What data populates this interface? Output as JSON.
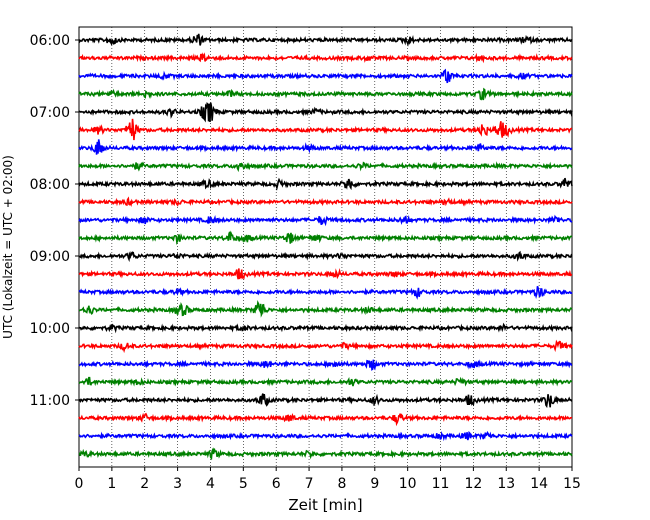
{
  "chart_data": {
    "type": "line",
    "title": "",
    "xlabel": "Zeit  [min]",
    "ylabel": "UTC (Lokalzeit = UTC + 02:00)",
    "xlim": [
      0,
      15
    ],
    "x_ticks": [
      "0",
      "1",
      "2",
      "3",
      "4",
      "5",
      "6",
      "7",
      "8",
      "9",
      "10",
      "11",
      "12",
      "13",
      "14",
      "15"
    ],
    "y_ticks": [
      "06:00",
      "07:00",
      "08:00",
      "09:00",
      "10:00",
      "11:00"
    ],
    "trace_interval_min": 15,
    "grid": "vertical-dotted",
    "colors": [
      "#000000",
      "#ff0000",
      "#0000ff",
      "#008000"
    ],
    "traces": [
      {
        "start": "06:00",
        "events": [
          [
            1.0,
            5
          ],
          [
            3.6,
            6
          ],
          [
            10.0,
            3
          ],
          [
            13.6,
            3
          ]
        ]
      },
      {
        "start": "06:15",
        "events": [
          [
            3.8,
            3
          ],
          [
            8.8,
            2
          ],
          [
            12.2,
            2
          ]
        ]
      },
      {
        "start": "06:30",
        "events": [
          [
            2.6,
            2
          ],
          [
            11.2,
            7
          ],
          [
            13.5,
            2
          ]
        ]
      },
      {
        "start": "06:45",
        "events": [
          [
            1.0,
            2
          ],
          [
            2.0,
            3
          ],
          [
            4.6,
            2
          ],
          [
            12.3,
            5
          ]
        ]
      },
      {
        "start": "07:00",
        "events": [
          [
            2.8,
            3
          ],
          [
            3.8,
            5
          ],
          [
            4.0,
            9
          ],
          [
            7.2,
            2
          ]
        ]
      },
      {
        "start": "07:15",
        "events": [
          [
            0.6,
            3
          ],
          [
            1.6,
            12
          ],
          [
            12.3,
            6
          ],
          [
            12.8,
            7
          ],
          [
            13.0,
            4
          ]
        ]
      },
      {
        "start": "07:30",
        "events": [
          [
            0.6,
            8
          ],
          [
            7.0,
            2
          ],
          [
            12.2,
            3
          ]
        ]
      },
      {
        "start": "07:45",
        "events": [
          [
            1.8,
            3
          ],
          [
            4.9,
            4
          ],
          [
            8.6,
            2
          ]
        ]
      },
      {
        "start": "08:00",
        "events": [
          [
            3.9,
            3
          ],
          [
            6.1,
            3
          ],
          [
            8.2,
            6
          ],
          [
            14.8,
            5
          ]
        ]
      },
      {
        "start": "08:15",
        "events": [
          [
            1.5,
            2
          ],
          [
            3.0,
            2
          ],
          [
            11.2,
            2
          ]
        ]
      },
      {
        "start": "08:30",
        "events": [
          [
            2.0,
            3
          ],
          [
            4.0,
            3
          ],
          [
            7.4,
            4
          ],
          [
            9.9,
            3
          ],
          [
            14.5,
            3
          ]
        ]
      },
      {
        "start": "08:45",
        "events": [
          [
            3.0,
            3
          ],
          [
            4.6,
            5
          ],
          [
            5.1,
            3
          ],
          [
            6.4,
            5
          ],
          [
            7.2,
            3
          ]
        ]
      },
      {
        "start": "09:00",
        "events": [
          [
            1.6,
            3
          ],
          [
            3.0,
            2
          ],
          [
            8.0,
            2
          ],
          [
            13.4,
            3
          ]
        ]
      },
      {
        "start": "09:15",
        "events": [
          [
            4.9,
            5
          ],
          [
            7.8,
            3
          ],
          [
            9.6,
            2
          ]
        ]
      },
      {
        "start": "09:30",
        "events": [
          [
            3.0,
            2
          ],
          [
            10.3,
            4
          ],
          [
            14.0,
            5
          ]
        ]
      },
      {
        "start": "09:45",
        "events": [
          [
            0.3,
            4
          ],
          [
            3.0,
            3
          ],
          [
            3.2,
            4
          ],
          [
            5.5,
            10
          ],
          [
            8.8,
            2
          ]
        ]
      },
      {
        "start": "10:00",
        "events": [
          [
            1.0,
            2
          ],
          [
            5.0,
            2
          ],
          [
            12.9,
            2
          ]
        ]
      },
      {
        "start": "10:15",
        "events": [
          [
            1.4,
            3
          ],
          [
            8.1,
            2
          ],
          [
            14.6,
            4
          ]
        ]
      },
      {
        "start": "10:30",
        "events": [
          [
            5.7,
            3
          ],
          [
            7.8,
            3
          ],
          [
            8.9,
            5
          ],
          [
            12.0,
            3
          ]
        ]
      },
      {
        "start": "10:45",
        "events": [
          [
            0.3,
            3
          ],
          [
            1.8,
            2
          ],
          [
            8.3,
            3
          ],
          [
            11.6,
            3
          ]
        ]
      },
      {
        "start": "11:00",
        "events": [
          [
            5.6,
            6
          ],
          [
            9.0,
            3
          ],
          [
            11.9,
            5
          ],
          [
            14.3,
            7
          ]
        ]
      },
      {
        "start": "11:15",
        "events": [
          [
            2.0,
            3
          ],
          [
            6.4,
            3
          ],
          [
            9.7,
            5
          ]
        ]
      },
      {
        "start": "11:30",
        "events": [
          [
            11.0,
            2
          ],
          [
            11.8,
            3
          ],
          [
            12.4,
            3
          ]
        ]
      },
      {
        "start": "11:45",
        "events": [
          [
            0.2,
            2
          ],
          [
            4.1,
            4
          ],
          [
            7.0,
            2
          ]
        ]
      }
    ]
  }
}
